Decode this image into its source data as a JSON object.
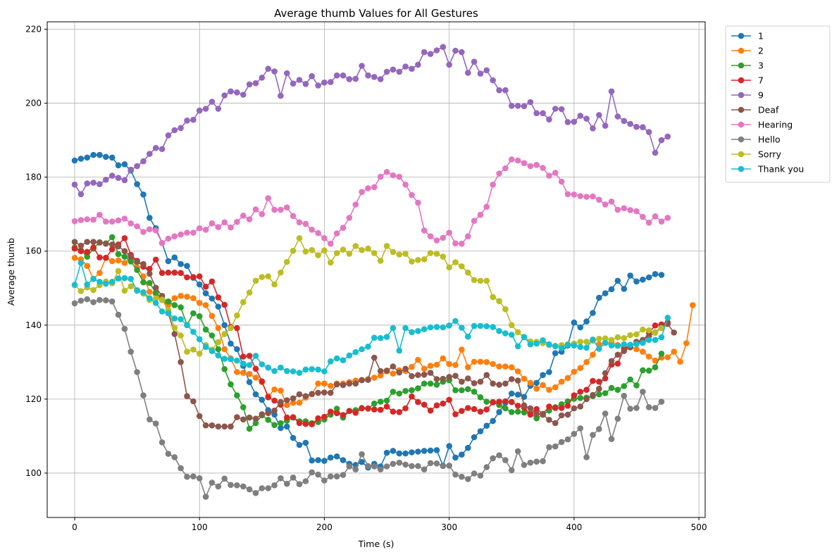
{
  "chart_data": {
    "type": "line",
    "title": "Average thumb Values for All Gestures",
    "xlabel": "Time (s)",
    "ylabel": "Average thumb",
    "xlim": [
      -22,
      505
    ],
    "ylim": [
      88,
      222
    ],
    "xticks": [
      0,
      100,
      200,
      300,
      400,
      500
    ],
    "yticks": [
      100,
      120,
      140,
      160,
      180,
      200,
      220
    ],
    "grid": true,
    "legend_position": "outside-top-right",
    "series": [
      {
        "name": "1",
        "color": "#1f77b4",
        "x_start": 0,
        "x_step": 5,
        "values": [
          184.5,
          185,
          185.3,
          186,
          186,
          185.5,
          185.3,
          183.2,
          183.5,
          181.8,
          178.1,
          175.3,
          169,
          166.2,
          162.2,
          157.3,
          158.3,
          156.5,
          156,
          152.8,
          151,
          148.6,
          147.2,
          145,
          140,
          135,
          133.5,
          129,
          124.6,
          121.3,
          119.8,
          117,
          115.8,
          112.2,
          112.6,
          109.5,
          107.6,
          108.2,
          103.4,
          103.5,
          103.3,
          104.2,
          104.5,
          103.5,
          102.5,
          102.2,
          103,
          101.5,
          102.5,
          101.8,
          105.5,
          106,
          105.3,
          105.3,
          105.6,
          105.8,
          106,
          106.1,
          106.2,
          102,
          107.3,
          104.2,
          105,
          106.8,
          109.7,
          111.3,
          112.8,
          114.1,
          116.5,
          119,
          121.5,
          121.2,
          120.6,
          123.6,
          124.4,
          126.5,
          127.3,
          132.4,
          132.8,
          134.5,
          140.7,
          139.4,
          141,
          143.3,
          147.4,
          148.6,
          149.7,
          152,
          149.8,
          153.4,
          151.8,
          152.3,
          152.9,
          153.8,
          153.6
        ]
      },
      {
        "name": "2",
        "color": "#ff7f0e",
        "x_start": 0,
        "x_step": 5,
        "values": [
          158.2,
          157.8,
          156,
          152.5,
          154.1,
          158.2,
          157.3,
          157.5,
          156.8,
          158.2,
          155.6,
          153.2,
          149,
          148.4,
          146.8,
          145.5,
          147.3,
          147.9,
          147.7,
          147.3,
          146,
          145.4,
          142.5,
          139.2,
          133.5,
          131,
          127.3,
          127.1,
          126.8,
          125.8,
          124.6,
          120.8,
          122.6,
          122.3,
          118.4,
          119,
          119,
          120.4,
          121.3,
          124.2,
          124.2,
          123.6,
          124.2,
          124.2,
          124.6,
          125,
          125.2,
          125.4,
          125.8,
          126.4,
          127.5,
          126.9,
          127.8,
          127.6,
          128.7,
          130.6,
          128.2,
          129,
          129.3,
          131,
          129.5,
          129.2,
          133.4,
          128.6,
          130.1,
          130.1,
          130,
          129.5,
          128.8,
          128.8,
          128.6,
          127.5,
          125.5,
          124.4,
          122.8,
          123.8,
          122.5,
          123.2,
          124.7,
          125.7,
          127.4,
          128.4,
          130,
          132,
          134.8,
          135.2,
          135.3,
          134.6,
          134.2,
          134.2,
          133.5,
          132.8,
          131.5,
          130.4,
          131.2,
          131.3,
          132.8,
          130.1,
          135.1,
          145.4
        ]
      },
      {
        "name": "3",
        "color": "#2ca02c",
        "x_start": 0,
        "x_step": 5,
        "values": [
          161,
          160.2,
          158.5,
          160.7,
          162.4,
          162,
          163.8,
          159.2,
          158.5,
          157.2,
          154.9,
          151.6,
          151.4,
          148.8,
          147.2,
          146.4,
          145.4,
          144.8,
          140,
          143.2,
          142.4,
          138.8,
          137.2,
          133.5,
          128.1,
          124,
          121,
          117.8,
          112,
          113.5,
          115.6,
          114.4,
          113,
          113.5,
          114.2,
          115,
          114,
          114,
          113.5,
          113.8,
          114.5,
          115.8,
          117.4,
          115,
          116.8,
          117,
          117.6,
          117.4,
          118.8,
          119.3,
          119.6,
          122,
          121.5,
          122.2,
          122.4,
          122.9,
          124.2,
          124.2,
          123.9,
          124.7,
          125.1,
          122.4,
          122.4,
          122.7,
          122,
          120.5,
          119.3,
          119.2,
          118.4,
          117.5,
          116.5,
          116.6,
          116.4,
          116.1,
          114.8,
          115.8,
          116.9,
          117.8,
          118.6,
          119.4,
          120.1,
          120.3,
          120.4,
          120.8,
          121.3,
          121.6,
          123,
          122.5,
          123.5,
          125.3,
          123.7,
          127.8,
          127.7,
          128.6,
          132.3
        ]
      },
      {
        "name": "7",
        "color": "#d62728",
        "x_start": 0,
        "x_step": 5,
        "values": [
          160.7,
          160,
          159.8,
          161,
          158.3,
          158.2,
          160.5,
          161.8,
          163.5,
          159,
          157.4,
          155.8,
          155.2,
          157.7,
          154.1,
          154.2,
          154.2,
          154.1,
          152.9,
          153,
          153.2,
          150.4,
          151.8,
          147.5,
          145.5,
          139.5,
          139.2,
          131.5,
          131.7,
          128.2,
          124.8,
          120.5,
          119.6,
          118.5,
          115,
          115.1,
          113.5,
          113.3,
          113.2,
          114.8,
          115.2,
          116.6,
          116.2,
          115.7,
          116.8,
          116.3,
          117.5,
          117.5,
          117.2,
          117.1,
          118,
          116.6,
          116.5,
          117.5,
          120.7,
          119.2,
          118.5,
          116.9,
          118.3,
          118.8,
          119.8,
          115.9,
          116.8,
          117.6,
          117.3,
          116.6,
          117.2,
          119.1,
          119.3,
          119.4,
          119.2,
          118.2,
          117.7,
          115.8,
          117.3,
          116,
          118,
          117.6,
          117.6,
          118.2,
          121,
          122,
          122.5,
          124.9,
          124.7,
          125.6,
          129.3,
          129.6,
          133.6,
          134.4,
          135.4,
          135.5,
          138,
          139.9,
          140.2,
          140.7
        ]
      },
      {
        "name": "9",
        "color": "#9467bd",
        "x_start": 0,
        "x_step": 5,
        "values": [
          178,
          175.4,
          178.3,
          178.5,
          178.1,
          179.3,
          180.4,
          179.8,
          179.2,
          182,
          183,
          184.3,
          186.3,
          187.9,
          187.6,
          191.3,
          192.7,
          193.3,
          195.3,
          195.5,
          198,
          198.5,
          200.4,
          198.5,
          202.1,
          203.2,
          202.9,
          202.3,
          205.1,
          205.4,
          206.9,
          209.3,
          208.6,
          202,
          208.1,
          205.3,
          206.3,
          205.2,
          207.3,
          204.8,
          205.6,
          205.7,
          207.5,
          207.5,
          206.5,
          206.6,
          210.1,
          207.5,
          207.1,
          206.5,
          208.5,
          209.1,
          208.5,
          209.9,
          209.3,
          210.4,
          213.8,
          213.3,
          214.3,
          215.2,
          210.4,
          214.2,
          213.8,
          208.2,
          211.2,
          208,
          208.9,
          206.2,
          203.5,
          203.5,
          199.3,
          199.3,
          199.2,
          200.3,
          197.3,
          197.3,
          195.6,
          198.5,
          198.4,
          194.9,
          195,
          196.6,
          195.8,
          193.2,
          196.8,
          193.9,
          203.2,
          196.4,
          195.2,
          194.4,
          193.6,
          193.5,
          192.2,
          186.6,
          190,
          191
        ]
      },
      {
        "name": "Deaf",
        "color": "#8c564b",
        "x_start": 0,
        "x_step": 5,
        "values": [
          162.5,
          161.5,
          162.5,
          162.5,
          162.3,
          162.1,
          161.8,
          161.3,
          160,
          158.5,
          157.1,
          156.5,
          153.9,
          150.1,
          147.9,
          143.3,
          137.6,
          130,
          120.8,
          119.4,
          115.4,
          112.9,
          112.9,
          112.6,
          112.6,
          112.6,
          115.1,
          114.5,
          115,
          114.7,
          115.9,
          116.2,
          116.9,
          119.2,
          119.7,
          120.2,
          121.3,
          120.8,
          121.4,
          121.7,
          121.8,
          121.7,
          124,
          123.8,
          124.2,
          124.2,
          125.1,
          125.2,
          131.2,
          127.6,
          127.7,
          128.8,
          127.2,
          128.2,
          126.2,
          126.5,
          126.6,
          127.1,
          125.4,
          125.5,
          126,
          126.3,
          124.7,
          125.6,
          124.3,
          124.7,
          126.5,
          124.2,
          123.9,
          124.2,
          125.4,
          125,
          118.3,
          117.5,
          116,
          115.8,
          114.4,
          113.5,
          115.6,
          115.8,
          117.5,
          118,
          120,
          121.1,
          122.8,
          127,
          130.3,
          132,
          133,
          134,
          135.5,
          136,
          137,
          138,
          139.5,
          140.3,
          138
        ]
      },
      {
        "name": "Hearing",
        "color": "#e377c2",
        "x_start": 0,
        "x_step": 5,
        "values": [
          168.1,
          168.4,
          168.6,
          168.5,
          169.8,
          168,
          168,
          168.3,
          168.8,
          167.5,
          166.7,
          165.2,
          165.9,
          165.6,
          162.2,
          163.4,
          164,
          164.5,
          165,
          165,
          166.2,
          165.8,
          167.5,
          166.5,
          167.8,
          166.4,
          167.9,
          169.6,
          168.6,
          171.3,
          170,
          174.3,
          171.2,
          171.2,
          171.8,
          169.5,
          167.8,
          167.4,
          165.8,
          164.9,
          163.5,
          162,
          164.8,
          166.3,
          169,
          172.6,
          176,
          177,
          177.3,
          180.1,
          181.4,
          180.5,
          180.1,
          178,
          175.2,
          173.1,
          165.6,
          164,
          162.9,
          163.6,
          165,
          162.1,
          162,
          164,
          168.2,
          169.8,
          172,
          178,
          181,
          182.4,
          184.8,
          184.5,
          183.8,
          183,
          183.3,
          182.5,
          180.4,
          181.2,
          178.8,
          175.4,
          175.3,
          174.9,
          174.7,
          174.8,
          173.9,
          172.6,
          173.4,
          171.2,
          171.6,
          171.1,
          170.8,
          169.3,
          167.7,
          169.4,
          168,
          169
        ]
      },
      {
        "name": "Hello",
        "color": "#7f7f7f",
        "x_start": 0,
        "x_step": 5,
        "values": [
          145.9,
          146.6,
          147,
          146.2,
          146.8,
          146.7,
          146.4,
          142.8,
          139,
          132.8,
          127.3,
          121,
          114.5,
          113.4,
          108.3,
          105.2,
          104.3,
          101.3,
          99,
          99.1,
          98.6,
          93.6,
          97.4,
          96.4,
          98.5,
          96.8,
          96.7,
          96.4,
          95.6,
          94.6,
          95.9,
          95.9,
          96.7,
          98.6,
          97.1,
          98.8,
          97,
          97.8,
          100.2,
          99.6,
          98,
          99.1,
          99.1,
          99.5,
          101.8,
          101,
          105.1,
          101.9,
          101.8,
          101,
          101.8,
          102.5,
          102.8,
          102.3,
          101.9,
          101.9,
          101,
          102.7,
          102.6,
          101.9,
          102,
          99.6,
          99,
          98.4,
          99.9,
          99.3,
          101.6,
          104,
          104.8,
          103.5,
          100.8,
          105.9,
          102.2,
          102.8,
          103.1,
          103.2,
          107,
          107.2,
          108.4,
          109.1,
          110.6,
          112.1,
          104.3,
          110.3,
          111.9,
          116.1,
          109.2,
          114.7,
          120.9,
          117.4,
          117.6,
          122,
          117.8,
          117.6,
          119.3
        ]
      },
      {
        "name": "Sorry",
        "color": "#bcbd22",
        "x_start": 0,
        "x_step": 5,
        "values": [
          150.8,
          149.2,
          150.2,
          149.5,
          150.8,
          151.8,
          151.3,
          154.6,
          149.3,
          150.5,
          149.5,
          148.5,
          146.8,
          147.2,
          146.9,
          144.1,
          139.3,
          137.2,
          132.8,
          133.4,
          132.3,
          134.6,
          133.4,
          135.4,
          137.6,
          139.2,
          142.6,
          146.2,
          148.8,
          152,
          153,
          153.2,
          151,
          154.2,
          157.1,
          160.1,
          163.5,
          159.9,
          160.3,
          158.9,
          160.2,
          156.9,
          159.5,
          160.4,
          159.3,
          161.4,
          160.3,
          160.7,
          159.5,
          157.4,
          161.4,
          159.8,
          159.1,
          159.3,
          157.2,
          157.6,
          157.8,
          159.5,
          159.3,
          158.5,
          155.6,
          157,
          155.9,
          154.2,
          152.2,
          152,
          152,
          147.6,
          146.5,
          144.3,
          140,
          138.1,
          136.7,
          135.6,
          135.5,
          135.1,
          134.6,
          134.4,
          134.6,
          134.8,
          135,
          135.5,
          135.5,
          135.8,
          136.3,
          136.4,
          136,
          136.7,
          136.5,
          137.3,
          137.5,
          138.8,
          138.6,
          137.9,
          139.2
        ]
      },
      {
        "name": "Thank you",
        "color": "#17becf",
        "x_start": 0,
        "x_step": 5,
        "values": [
          150.9,
          156.8,
          151,
          152.5,
          151.7,
          151.2,
          151.7,
          152.6,
          152.7,
          152.5,
          149.3,
          148.9,
          147.3,
          146,
          143.7,
          143.2,
          141.8,
          141.6,
          140,
          138.2,
          136.2,
          134.1,
          133,
          131.8,
          130.9,
          130.8,
          130.4,
          129.6,
          129.2,
          131.7,
          129.4,
          128.5,
          127.6,
          128.5,
          127.6,
          127.5,
          127.1,
          128,
          128.1,
          128,
          127.5,
          130.2,
          131,
          130.5,
          131.8,
          132.7,
          133.5,
          134.2,
          136.6,
          136.5,
          136.8,
          139.2,
          133.1,
          139.2,
          138.1,
          138.4,
          138.9,
          139.4,
          139.5,
          139.4,
          139.9,
          141.1,
          139.3,
          136.9,
          139.8,
          139.8,
          139.7,
          139.5,
          138.4,
          137.8,
          137.4,
          134.3,
          136.8,
          134.8,
          135,
          135.9,
          134.8,
          134.3,
          133.8,
          134.7,
          134.5,
          134.1,
          133.9,
          136.1,
          133.6,
          135.2,
          134.5,
          134.4,
          134.8,
          134.7,
          134.9,
          135.2,
          136,
          136,
          136.7,
          142
        ]
      }
    ]
  }
}
